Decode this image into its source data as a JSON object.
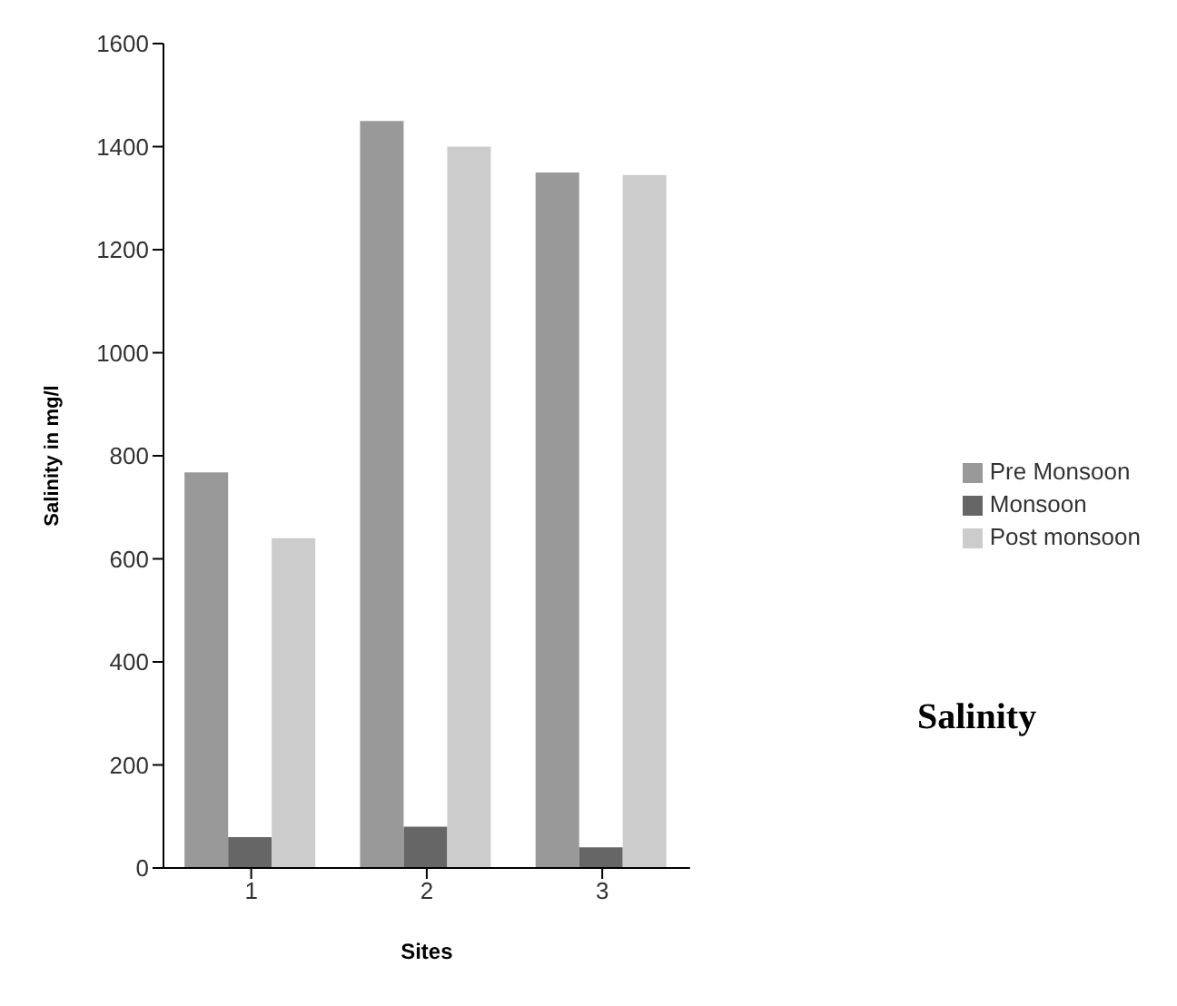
{
  "chart_data": {
    "type": "bar",
    "title": "Salinity",
    "xlabel": "Sites",
    "ylabel": "Salinity in mg/l",
    "categories": [
      "1",
      "2",
      "3"
    ],
    "series": [
      {
        "name": "Pre Monsoon",
        "color": "#999999",
        "values": [
          768,
          1450,
          1350
        ]
      },
      {
        "name": "Monsoon",
        "color": "#666666",
        "values": [
          60,
          80,
          40
        ]
      },
      {
        "name": "Post monsoon",
        "color": "#cccccc",
        "values": [
          640,
          1400,
          1345
        ]
      }
    ],
    "ylim": [
      0,
      1600
    ],
    "yticks": [
      0,
      200,
      400,
      600,
      800,
      1000,
      1200,
      1400,
      1600
    ],
    "grid": false,
    "legend": "right"
  }
}
